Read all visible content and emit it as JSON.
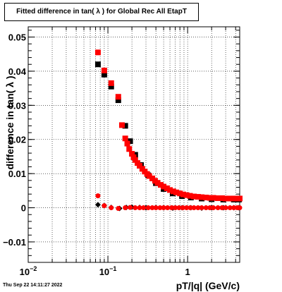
{
  "timestamp": "Thu Sep 22 14:11:27 2022",
  "chart_data": {
    "type": "scatter",
    "title": "Fitted difference in tan( λ ) for Global Rec All EtapT",
    "xlabel": "pT/|q| (GeV/c)",
    "ylabel": "difference in tan( λ )",
    "x_scale": "log",
    "xlim": [
      0.01,
      4.5
    ],
    "ylim": [
      -0.016,
      0.053
    ],
    "x_ticks": [
      {
        "value": 0.01,
        "label": "10",
        "sup": "−2"
      },
      {
        "value": 0.1,
        "label": "10",
        "sup": "−1"
      },
      {
        "value": 1,
        "label": "1",
        "sup": ""
      }
    ],
    "y_ticks": [
      {
        "value": -0.01,
        "label": "−0.01"
      },
      {
        "value": 0,
        "label": "0"
      },
      {
        "value": 0.01,
        "label": "0.01"
      },
      {
        "value": 0.02,
        "label": "0.02"
      },
      {
        "value": 0.03,
        "label": "0.03"
      },
      {
        "value": 0.04,
        "label": "0.04"
      },
      {
        "value": 0.05,
        "label": "0.05"
      }
    ],
    "grid": true,
    "colors": {
      "black": "#000000",
      "red": "#ff0000"
    },
    "series": [
      {
        "marker": "square",
        "color": "#000000",
        "x": [
          0.075,
          0.09,
          0.11,
          0.135,
          0.165,
          0.19,
          0.22,
          0.26,
          0.32,
          0.4,
          0.5,
          0.65,
          0.85,
          1.1,
          1.5,
          2.0,
          2.8,
          3.8,
          4.4
        ],
        "y": [
          0.042,
          0.039,
          0.0355,
          0.0315,
          0.024,
          0.0195,
          0.0155,
          0.0125,
          0.0095,
          0.0072,
          0.0055,
          0.0042,
          0.0034,
          0.003,
          0.0027,
          0.0025,
          0.0024,
          0.0024,
          0.0024
        ]
      },
      {
        "marker": "square",
        "color": "#ff0000",
        "x": [
          0.075,
          0.09,
          0.11,
          0.135,
          0.15,
          0.165,
          0.175,
          0.185,
          0.2,
          0.21,
          0.22,
          0.235,
          0.25,
          0.27,
          0.29,
          0.31,
          0.33,
          0.36,
          0.39,
          0.42,
          0.46,
          0.5,
          0.55,
          0.6,
          0.66,
          0.72,
          0.8,
          0.88,
          0.97,
          1.07,
          1.2,
          1.35,
          1.5,
          1.7,
          1.9,
          2.1,
          2.4,
          2.7,
          3.0,
          3.4,
          3.8,
          4.2,
          4.5
        ],
        "y": [
          0.0455,
          0.0402,
          0.0365,
          0.0325,
          0.0242,
          0.0203,
          0.0188,
          0.0172,
          0.0158,
          0.0148,
          0.014,
          0.0131,
          0.0123,
          0.0114,
          0.0106,
          0.0099,
          0.0093,
          0.0086,
          0.0079,
          0.0073,
          0.0067,
          0.0062,
          0.0057,
          0.0052,
          0.0048,
          0.0045,
          0.0042,
          0.0039,
          0.0037,
          0.0035,
          0.0033,
          0.0032,
          0.0031,
          0.003,
          0.0029,
          0.0029,
          0.0028,
          0.0028,
          0.0027,
          0.0027,
          0.0027,
          0.0027,
          0.0027
        ]
      },
      {
        "marker": "diamond",
        "color": "#000000",
        "x": [
          0.075,
          0.09,
          0.11,
          0.14,
          0.17,
          0.2,
          0.25,
          0.3,
          0.4,
          0.5,
          0.65,
          0.85,
          1.1,
          1.5,
          2.0,
          2.8,
          3.8,
          4.4
        ],
        "y": [
          0.0009,
          0.0006,
          0.0001,
          -0.0002,
          0.0001,
          0.0002,
          0.0001,
          0.0,
          0.0001,
          0.0,
          -0.0001,
          0.0,
          0.0,
          -0.0001,
          0.0,
          0.0,
          0.0,
          0.0
        ]
      },
      {
        "marker": "circle",
        "color": "#ff0000",
        "x": [
          0.075,
          0.09,
          0.11,
          0.135,
          0.165,
          0.19,
          0.22,
          0.25,
          0.28,
          0.32,
          0.36,
          0.4,
          0.45,
          0.5,
          0.56,
          0.63,
          0.7,
          0.78,
          0.87,
          0.97,
          1.08,
          1.2,
          1.35,
          1.5,
          1.7,
          1.9,
          2.1,
          2.4,
          2.7,
          3.0,
          3.4,
          3.8,
          4.2,
          4.5
        ],
        "y": [
          0.0035,
          0.0006,
          0.0,
          -0.0002,
          0.0,
          0.0001,
          0.0,
          0.0,
          0.0,
          0.0,
          0.0,
          0.0,
          0.0,
          0.0,
          0.0,
          0.0,
          0.0,
          0.0,
          0.0,
          0.0,
          0.0,
          0.0,
          0.0,
          0.0,
          0.0,
          0.0,
          0.0,
          0.0,
          0.0,
          0.0,
          0.0,
          0.0,
          0.0,
          0.0
        ]
      }
    ]
  }
}
